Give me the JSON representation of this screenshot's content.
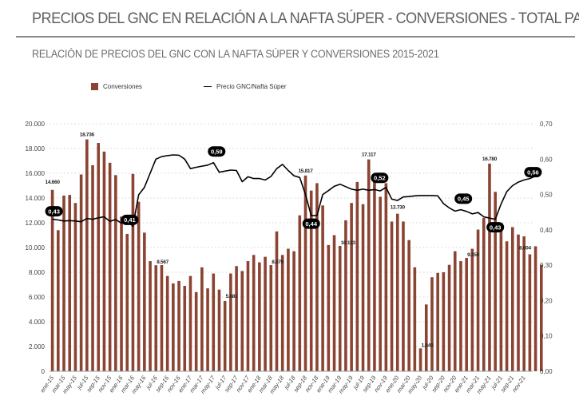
{
  "header": {
    "title": "PRECIOS DEL GNC EN RELACIÓN A LA NAFTA SÚPER - CONVERSIONES - TOTAL PAÍS",
    "subtitle": "RELACIÓN DE PRECIOS DEL GNC CON LA NAFTA SÚPER Y CONVERSIONES 2015-2021"
  },
  "colors": {
    "bar": "#8b4332",
    "line": "#000000",
    "grid": "#c8c8c8",
    "label_bg": "#000000"
  },
  "chart_data": {
    "type": "bar",
    "title": "RELACIÓN DE PRECIOS DEL GNC CON LA NAFTA SÚPER Y CONVERSIONES 2015-2021",
    "legend": [
      "Conversiones",
      "Precio GNC/Nafta Súper"
    ],
    "legend_position": "top",
    "grid": true,
    "ylim": [
      0,
      20000
    ],
    "y2lim": [
      0,
      0.7
    ],
    "y_ticks": [
      "0",
      "2.000",
      "4.000",
      "6.000",
      "8.000",
      "10.000",
      "12.000",
      "14.000",
      "16.000",
      "18.000",
      "20.000"
    ],
    "y2_ticks": [
      "0,00",
      "0,10",
      "0,20",
      "0,30",
      "0,40",
      "0,50",
      "0,60",
      "0,70"
    ],
    "x_tick_labels": [
      "ene-15",
      "mar-15",
      "may-15",
      "jul-15",
      "sep-15",
      "nov-15",
      "ene-16",
      "mar-16",
      "may-16",
      "jul-16",
      "sep-16",
      "nov-16",
      "ene-17",
      "mar-17",
      "may-17",
      "jul-17",
      "sep-17",
      "nov-17",
      "ene-18",
      "mar-18",
      "may-18",
      "jul-18",
      "sep-18",
      "nov-18",
      "ene-19",
      "mar-19",
      "may-19",
      "jul-19",
      "sep-19",
      "nov-19",
      "ene-20",
      "mar-20",
      "may-20",
      "jul-20",
      "sep-20",
      "nov-20",
      "ene-21",
      "mar-21",
      "may-21",
      "jul-21",
      "sep-21",
      "nov-21"
    ],
    "categories": [
      "ene-15",
      "feb-15",
      "mar-15",
      "abr-15",
      "may-15",
      "jun-15",
      "jul-15",
      "ago-15",
      "sep-15",
      "oct-15",
      "nov-15",
      "dic-15",
      "ene-16",
      "feb-16",
      "mar-16",
      "abr-16",
      "may-16",
      "jun-16",
      "jul-16",
      "ago-16",
      "sep-16",
      "oct-16",
      "nov-16",
      "dic-16",
      "ene-17",
      "feb-17",
      "mar-17",
      "abr-17",
      "may-17",
      "jun-17",
      "jul-17",
      "ago-17",
      "sep-17",
      "oct-17",
      "nov-17",
      "dic-17",
      "ene-18",
      "feb-18",
      "mar-18",
      "abr-18",
      "may-18",
      "jun-18",
      "jul-18",
      "ago-18",
      "sep-18",
      "oct-18",
      "nov-18",
      "dic-18",
      "ene-19",
      "feb-19",
      "mar-19",
      "abr-19",
      "may-19",
      "jun-19",
      "jul-19",
      "ago-19",
      "sep-19",
      "oct-19",
      "nov-19",
      "dic-19",
      "ene-20",
      "feb-20",
      "mar-20",
      "abr-20",
      "may-20",
      "jun-20",
      "jul-20",
      "ago-20",
      "sep-20",
      "oct-20",
      "nov-20",
      "dic-20",
      "ene-21",
      "feb-21",
      "mar-21",
      "abr-21",
      "may-21",
      "jun-21",
      "jul-21",
      "ago-21",
      "sep-21",
      "oct-21",
      "nov-21",
      "dic-21"
    ],
    "series": [
      {
        "name": "Conversiones",
        "type": "bar",
        "axis": "left",
        "values": [
          14660,
          11400,
          14200,
          14250,
          13600,
          15900,
          18736,
          16650,
          18450,
          17750,
          16850,
          15850,
          12500,
          11100,
          15950,
          13700,
          11200,
          8900,
          8567,
          8580,
          7700,
          7100,
          7300,
          6900,
          7700,
          6400,
          8400,
          6700,
          7900,
          6600,
          5681,
          7900,
          8500,
          8100,
          8900,
          9400,
          8800,
          9250,
          8576,
          11300,
          9400,
          9900,
          9700,
          12600,
          15817,
          14600,
          15200,
          13400,
          10200,
          11000,
          10133,
          12200,
          13600,
          15300,
          13500,
          17117,
          15300,
          14100,
          15200,
          12100,
          12730,
          12100,
          10600,
          8400,
          1849,
          5400,
          7600,
          7950,
          8000,
          8600,
          9700,
          8900,
          9159,
          9900,
          11450,
          12400,
          16780,
          14500,
          12000,
          10500,
          11650,
          11050,
          10900,
          9450,
          10100,
          8604
        ]
      },
      {
        "name": "Precio GNC/Nafta Súper",
        "type": "line",
        "axis": "right",
        "values": [
          0.43,
          0.428,
          0.425,
          0.426,
          0.425,
          0.423,
          0.432,
          0.43,
          0.434,
          0.437,
          0.424,
          0.429,
          0.419,
          0.428,
          0.41,
          0.499,
          0.52,
          0.56,
          0.6,
          0.607,
          0.61,
          0.612,
          0.611,
          0.6,
          0.573,
          0.577,
          0.58,
          0.583,
          0.59,
          0.563,
          0.566,
          0.569,
          0.568,
          0.536,
          0.55,
          0.545,
          0.545,
          0.541,
          0.551,
          0.573,
          0.585,
          0.568,
          0.553,
          0.548,
          0.5,
          0.44,
          0.44,
          0.5,
          0.511,
          0.523,
          0.529,
          0.522,
          0.515,
          0.512,
          0.515,
          0.512,
          0.514,
          0.51,
          0.52,
          0.487,
          0.483,
          0.493,
          0.494,
          0.496,
          0.497,
          0.497,
          0.497,
          0.496,
          0.474,
          0.462,
          0.453,
          0.457,
          0.452,
          0.445,
          0.449,
          0.437,
          0.433,
          0.43,
          0.473,
          0.508,
          0.525,
          0.535,
          0.541,
          0.545,
          0.552,
          0.56
        ]
      }
    ],
    "bar_data_labels": [
      {
        "index": 0,
        "text": "14.660"
      },
      {
        "index": 6,
        "text": "18.736"
      },
      {
        "index": 18,
        "text": "8.567"
      },
      {
        "index": 30,
        "text": "5.681"
      },
      {
        "index": 38,
        "text": "8.576"
      },
      {
        "index": 44,
        "text": "15.817"
      },
      {
        "index": 50,
        "text": "10.133"
      },
      {
        "index": 55,
        "text": "17.117"
      },
      {
        "index": 60,
        "text": "12.730"
      },
      {
        "index": 64,
        "text": "1.849"
      },
      {
        "index": 72,
        "text": "9.159"
      },
      {
        "index": 76,
        "text": "16.780"
      },
      {
        "index": 83,
        "text": "8.604"
      }
    ],
    "line_data_labels": [
      {
        "index": 0,
        "text": "0,43",
        "pos": "above"
      },
      {
        "index": 14,
        "text": "0,41",
        "pos": "above"
      },
      {
        "index": 28,
        "text": "0,59",
        "pos": "above"
      },
      {
        "index": 45,
        "text": "0,44",
        "pos": "below"
      },
      {
        "index": 58,
        "text": "0,52",
        "pos": "above"
      },
      {
        "index": 72,
        "text": "0,45",
        "pos": "above"
      },
      {
        "index": 77,
        "text": "0,43",
        "pos": "below"
      },
      {
        "index": 83,
        "text": "0,56",
        "pos": "above"
      }
    ]
  }
}
